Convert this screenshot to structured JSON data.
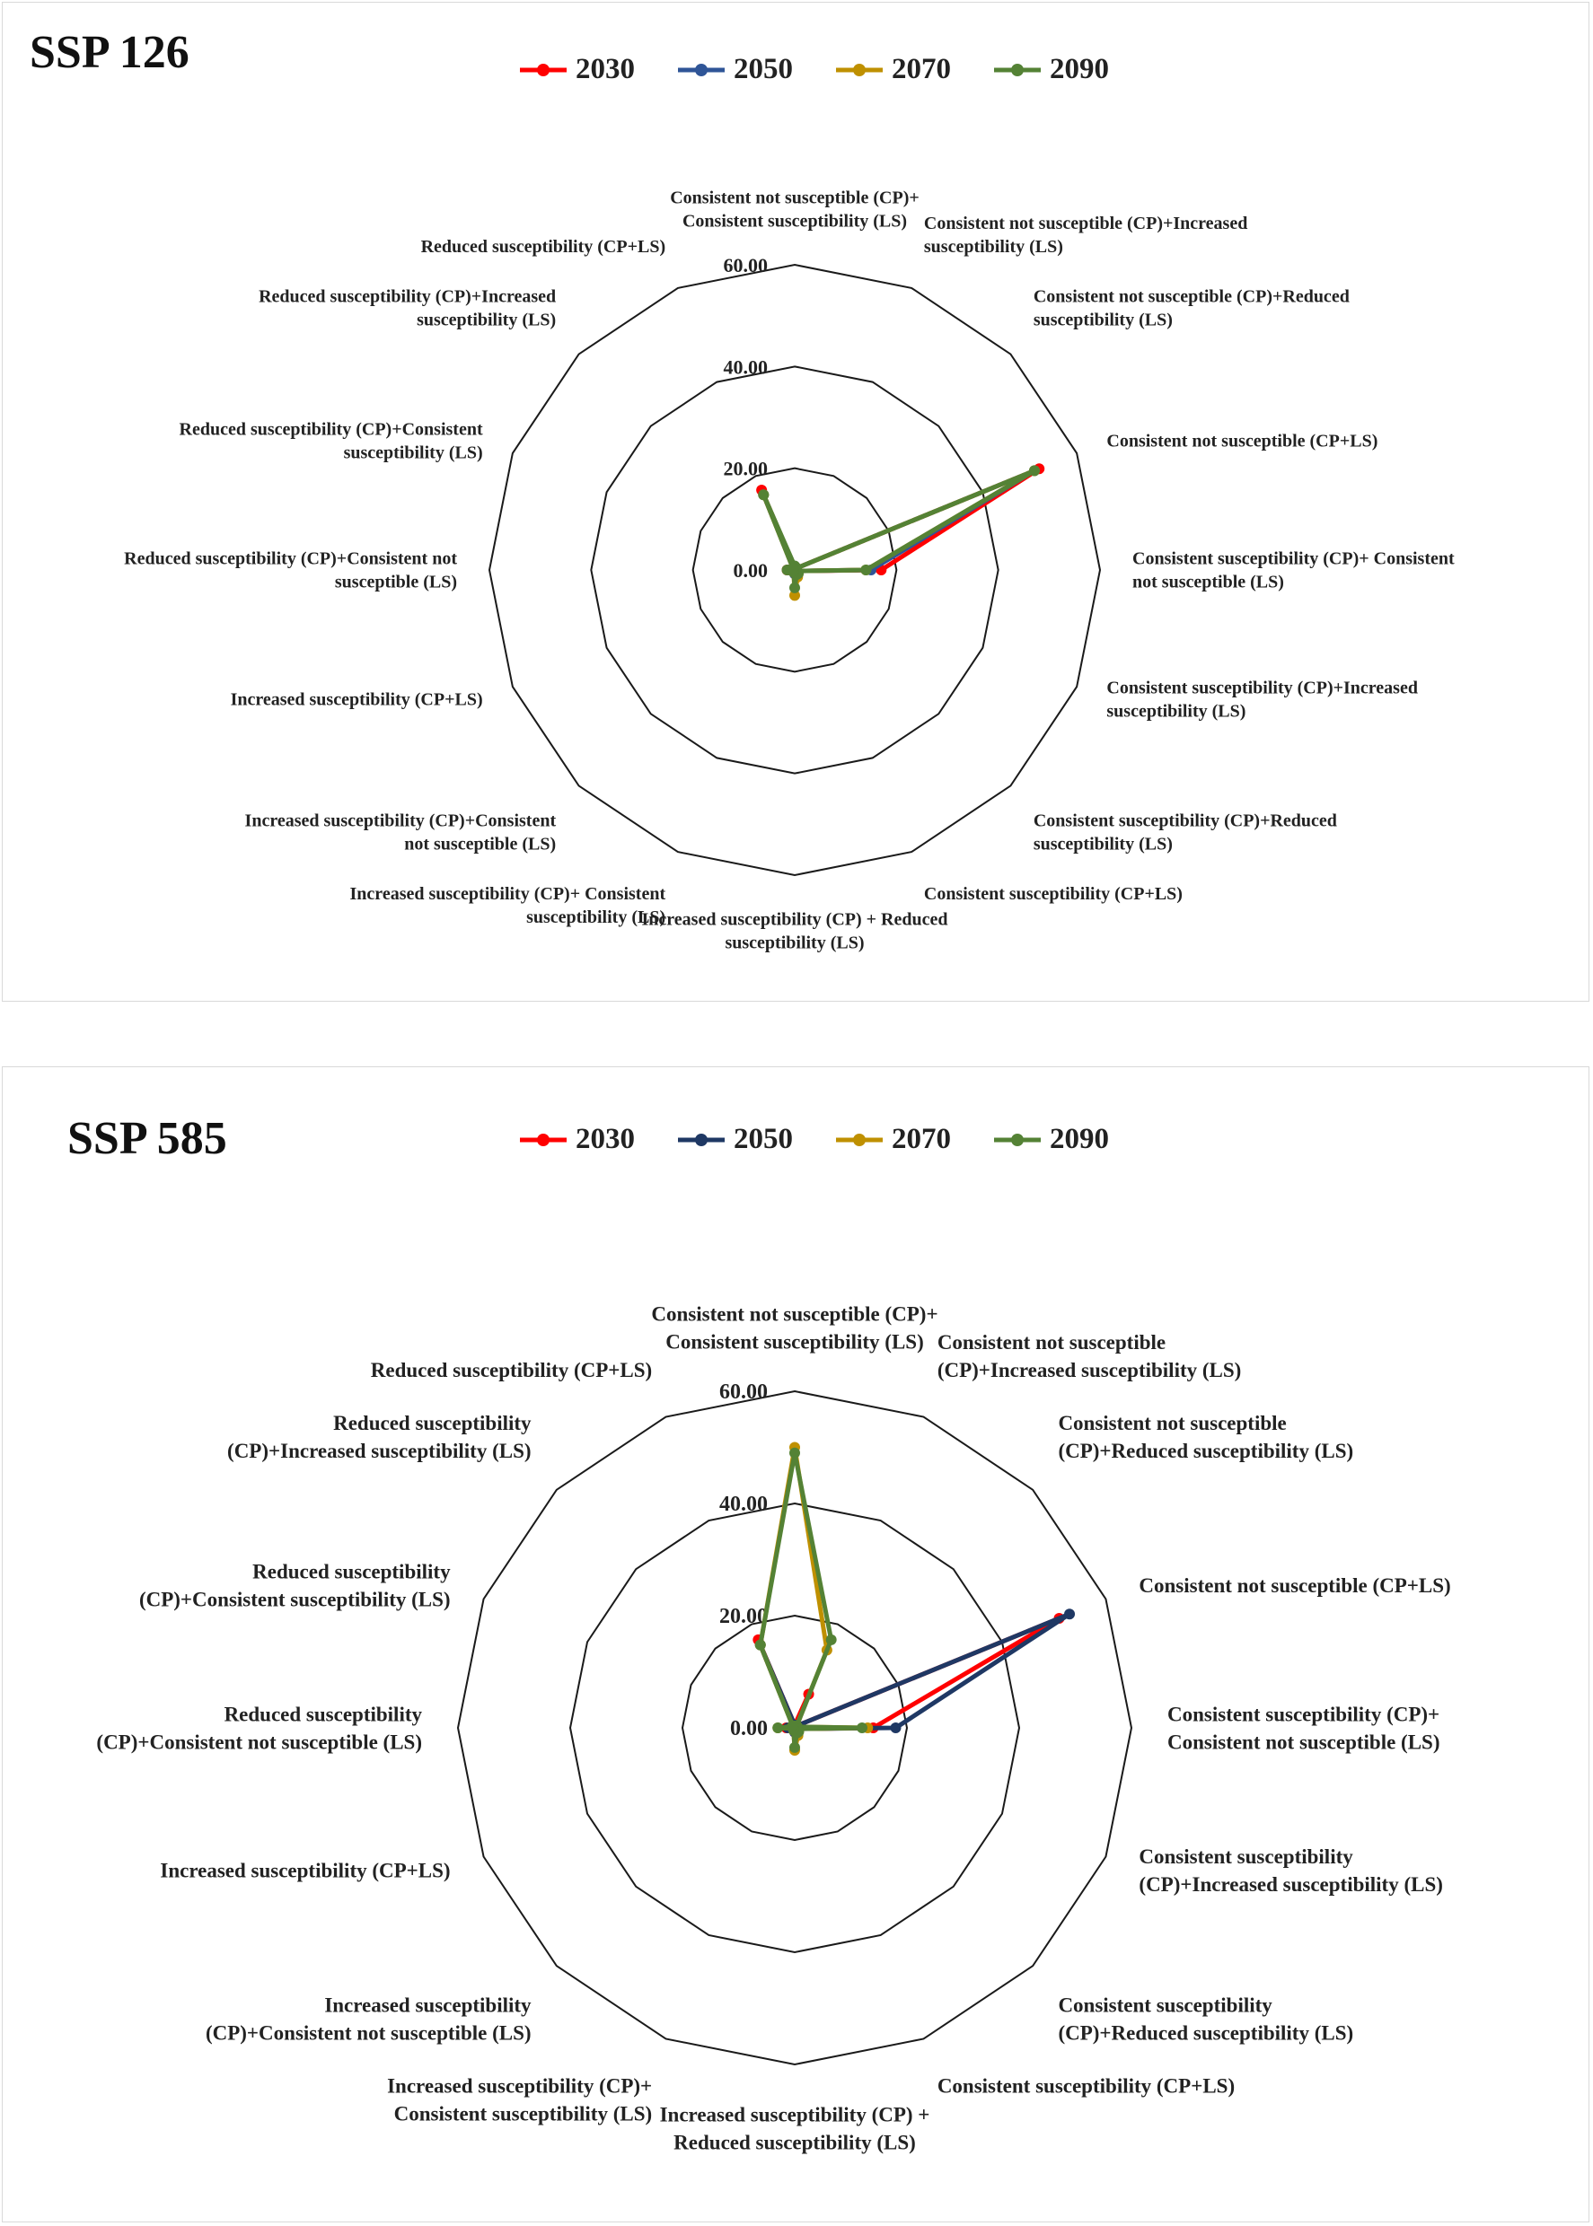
{
  "chart_data": [
    {
      "type": "radar",
      "title": "SSP 126",
      "rmax": 60,
      "ticks": [
        "0.00",
        "20.00",
        "40.00",
        "60.00"
      ],
      "tick_values": [
        0,
        20,
        40,
        60
      ],
      "categories": [
        "Consistent not susceptible (CP)+ Consistent susceptibility (LS)",
        "Consistent not susceptible (CP)+Increased susceptibility (LS)",
        "Consistent not susceptible (CP)+Reduced susceptibility (LS)",
        "Consistent not susceptible (CP+LS)",
        "Consistent susceptibility (CP)+ Consistent not susceptible (LS)",
        "Consistent susceptibility (CP)+Increased susceptibility (LS)",
        "Consistent susceptibility (CP)+Reduced susceptibility (LS)",
        "Consistent susceptibility (CP+LS)",
        "Increased susceptibility (CP) + Reduced susceptibility (LS)",
        "Increased susceptibility (CP)+ Consistent susceptibility (LS)",
        "Increased susceptibility (CP)+Consistent not susceptible (LS)",
        "Increased susceptibility (CP+LS)",
        "Reduced susceptibility (CP)+Consistent not susceptible (LS)",
        "Reduced susceptibility (CP)+Consistent susceptibility (LS)",
        "Reduced susceptibility (CP)+Increased susceptibility (LS)",
        "Reduced susceptibility (CP+LS)"
      ],
      "series": [
        {
          "name": "2030",
          "color": "#ff0000",
          "values": [
            0.5,
            0.5,
            0.5,
            52,
            17,
            0.5,
            0.3,
            0.2,
            0.3,
            0.2,
            0.3,
            0.2,
            1.5,
            0.3,
            0.3,
            17
          ]
        },
        {
          "name": "2050",
          "color": "#2f5597",
          "values": [
            0.5,
            0.5,
            0.5,
            51,
            15,
            0.5,
            0.5,
            0.5,
            0.8,
            0.3,
            0.3,
            0.2,
            1.2,
            0.3,
            0.3,
            16
          ]
        },
        {
          "name": "2070",
          "color": "#bf9000",
          "values": [
            0.5,
            0.5,
            0.5,
            51,
            14,
            0.5,
            1.0,
            1.5,
            5.0,
            0.5,
            0.3,
            0.3,
            1.0,
            0.5,
            0.5,
            16
          ]
        },
        {
          "name": "2090",
          "color": "#548235",
          "values": [
            0.8,
            0.5,
            0.5,
            51,
            14,
            0.5,
            1.0,
            1.0,
            3.5,
            0.5,
            0.3,
            0.3,
            1.5,
            0.5,
            0.5,
            16
          ]
        }
      ]
    },
    {
      "type": "radar",
      "title": "SSP 585",
      "rmax": 60,
      "ticks": [
        "0.00",
        "20.00",
        "40.00",
        "60.00"
      ],
      "tick_values": [
        0,
        20,
        40,
        60
      ],
      "categories": [
        "Consistent not susceptible (CP)+ Consistent susceptibility (LS)",
        "Consistent not susceptible (CP)+Increased susceptibility (LS)",
        "Consistent not susceptible (CP)+Reduced susceptibility (LS)",
        "Consistent not susceptible (CP+LS)",
        "Consistent susceptibility (CP)+ Consistent not susceptible (LS)",
        "Consistent susceptibility (CP)+Increased susceptibility (LS)",
        "Consistent susceptibility (CP)+Reduced susceptibility (LS)",
        "Consistent susceptibility (CP+LS)",
        "Increased susceptibility (CP) + Reduced susceptibility (LS)",
        "Increased susceptibility (CP)+ Consistent susceptibility (LS)",
        "Increased susceptibility (CP)+Consistent not susceptible (LS)",
        "Increased susceptibility (CP+LS)",
        "Reduced susceptibility (CP)+Consistent not susceptible (LS)",
        "Reduced susceptibility (CP)+Consistent susceptibility (LS)",
        "Reduced susceptibility (CP)+Increased susceptibility (LS)",
        "Reduced susceptibility (CP+LS)"
      ],
      "series": [
        {
          "name": "2030",
          "color": "#ff0000",
          "values": [
            0.5,
            6.5,
            0.5,
            51,
            14,
            0.5,
            0.5,
            0.3,
            0.5,
            0.3,
            0.3,
            0.2,
            1.5,
            0.3,
            0.3,
            17
          ]
        },
        {
          "name": "2050",
          "color": "#1f3864",
          "values": [
            0.5,
            0.5,
            0.5,
            53,
            18,
            0.5,
            0.5,
            0.5,
            0.8,
            0.3,
            0.3,
            0.2,
            1.2,
            0.3,
            0.3,
            16
          ]
        },
        {
          "name": "2070",
          "color": "#bf9000",
          "values": [
            50,
            15,
            0.5,
            0.5,
            13,
            0.5,
            1.0,
            1.5,
            4.0,
            0.5,
            0.3,
            0.3,
            3.0,
            0.5,
            0.5,
            16
          ]
        },
        {
          "name": "2090",
          "color": "#548235",
          "values": [
            49,
            17,
            0.5,
            0.5,
            12,
            0.5,
            1.0,
            1.0,
            3.5,
            0.5,
            0.3,
            0.3,
            3.0,
            0.5,
            0.5,
            16
          ]
        }
      ]
    }
  ]
}
